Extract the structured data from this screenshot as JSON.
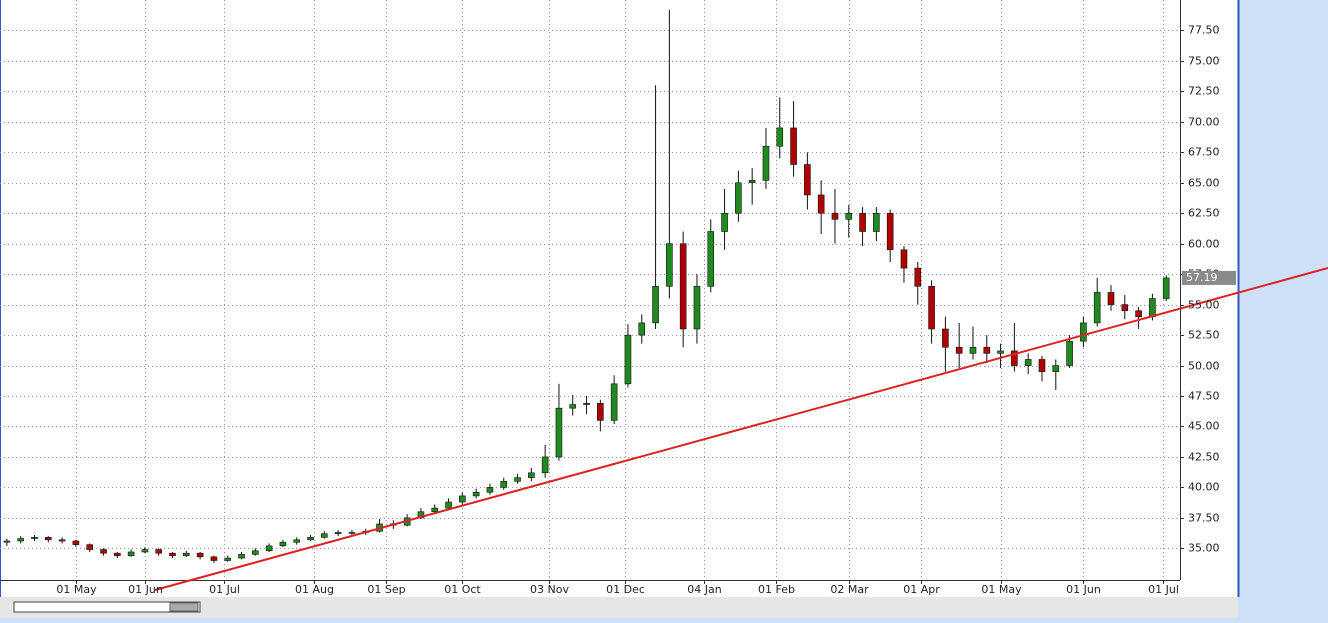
{
  "chart_data": {
    "type": "candlestick",
    "x": [
      0,
      4,
      8,
      12,
      16,
      20,
      24,
      28,
      32,
      36,
      40,
      44,
      48,
      52,
      56,
      60,
      64,
      68,
      72,
      76,
      80,
      84,
      88,
      92,
      96,
      100,
      104,
      108,
      112,
      116,
      120,
      124,
      128,
      132,
      136,
      140,
      144,
      148,
      152,
      156,
      160,
      164,
      168,
      172,
      176,
      180,
      184,
      188,
      192,
      196,
      200,
      204,
      208,
      212,
      216,
      220,
      224,
      228,
      232,
      236,
      240,
      244,
      248,
      252,
      256,
      260,
      264,
      268,
      272,
      276,
      280,
      284,
      288,
      292,
      296,
      300,
      304,
      308,
      312,
      316,
      320,
      324,
      328,
      332,
      336
    ],
    "open": [
      35.5,
      35.6,
      35.8,
      35.9,
      35.7,
      35.6,
      35.3,
      34.9,
      34.6,
      34.4,
      34.7,
      34.9,
      34.6,
      34.4,
      34.6,
      34.3,
      34.0,
      34.2,
      34.5,
      34.8,
      35.2,
      35.5,
      35.7,
      35.9,
      36.2,
      36.3,
      36.3,
      36.4,
      37.0,
      36.9,
      37.5,
      38.0,
      38.3,
      38.8,
      39.3,
      39.6,
      40.0,
      40.5,
      40.8,
      41.2,
      42.5,
      46.5,
      46.8,
      46.9,
      45.5,
      48.5,
      52.5,
      53.5,
      56.5,
      60.0,
      53.0,
      56.5,
      61.0,
      62.5,
      65.0,
      65.2,
      68.0,
      69.5,
      66.5,
      64.0,
      62.5,
      62.0,
      62.5,
      61.0,
      62.5,
      59.5,
      58.0,
      56.5,
      53.0,
      51.5,
      51.0,
      51.5,
      51.0,
      51.2,
      50.0,
      50.5,
      49.5,
      50.0,
      52.0,
      53.5,
      56.0,
      55.0,
      54.5,
      54.0,
      55.5
    ],
    "high": [
      35.8,
      36.0,
      36.1,
      36.0,
      35.9,
      35.7,
      35.4,
      35.0,
      34.7,
      34.9,
      35.1,
      35.0,
      34.7,
      34.8,
      34.7,
      34.4,
      34.4,
      34.7,
      35.0,
      35.4,
      35.7,
      35.9,
      36.1,
      36.4,
      36.5,
      36.5,
      36.6,
      37.4,
      37.3,
      37.8,
      38.3,
      38.6,
      39.1,
      39.6,
      39.9,
      40.3,
      40.8,
      41.1,
      41.6,
      43.5,
      48.5,
      47.6,
      47.5,
      47.2,
      49.2,
      53.4,
      54.2,
      73.0,
      79.2,
      61.0,
      57.5,
      62.0,
      64.5,
      66.0,
      66.2,
      69.5,
      72.0,
      71.7,
      67.5,
      65.2,
      64.5,
      63.2,
      63.0,
      63.0,
      62.8,
      59.8,
      58.5,
      57.0,
      54.0,
      53.5,
      53.2,
      52.5,
      51.8,
      53.5,
      51.0,
      50.8,
      50.5,
      52.5,
      54.0,
      57.2,
      56.6,
      55.8,
      54.8,
      55.9,
      57.4
    ],
    "low": [
      35.2,
      35.4,
      35.6,
      35.5,
      35.4,
      35.1,
      34.7,
      34.4,
      34.2,
      34.3,
      34.6,
      34.4,
      34.2,
      34.3,
      34.1,
      33.8,
      33.9,
      34.1,
      34.4,
      34.7,
      35.1,
      35.3,
      35.6,
      35.8,
      36.0,
      36.1,
      36.1,
      36.3,
      36.6,
      36.8,
      37.4,
      37.8,
      38.2,
      38.6,
      39.1,
      39.4,
      39.8,
      40.3,
      40.5,
      40.8,
      42.2,
      45.9,
      46.0,
      44.6,
      45.2,
      48.2,
      51.8,
      53.0,
      55.5,
      51.5,
      51.8,
      56.0,
      59.5,
      61.8,
      63.2,
      64.5,
      67.0,
      65.5,
      62.8,
      60.8,
      60.0,
      60.5,
      59.8,
      60.2,
      58.5,
      56.8,
      55.0,
      51.8,
      49.5,
      49.8,
      50.5,
      50.2,
      49.8,
      49.5,
      49.3,
      48.7,
      48.0,
      49.8,
      51.5,
      53.2,
      54.5,
      53.8,
      53.0,
      53.7,
      55.3
    ],
    "close": [
      35.6,
      35.8,
      35.9,
      35.7,
      35.6,
      35.3,
      34.9,
      34.6,
      34.4,
      34.7,
      34.9,
      34.6,
      34.4,
      34.6,
      34.3,
      34.0,
      34.2,
      34.5,
      34.8,
      35.2,
      35.5,
      35.7,
      35.9,
      36.2,
      36.3,
      36.3,
      36.4,
      37.0,
      36.9,
      37.5,
      38.0,
      38.3,
      38.8,
      39.3,
      39.6,
      40.0,
      40.5,
      40.8,
      41.2,
      42.5,
      46.5,
      46.8,
      46.9,
      45.5,
      48.5,
      52.5,
      53.5,
      56.5,
      60.0,
      53.0,
      56.5,
      61.0,
      62.5,
      65.0,
      65.2,
      68.0,
      69.5,
      66.5,
      64.0,
      62.5,
      62.0,
      62.5,
      61.0,
      62.5,
      59.5,
      58.0,
      56.5,
      53.0,
      51.5,
      51.0,
      51.5,
      51.0,
      51.2,
      50.0,
      50.5,
      49.5,
      50.0,
      52.0,
      53.5,
      56.0,
      55.0,
      54.5,
      54.0,
      55.5,
      57.19
    ],
    "up_color": "#1f8a1f",
    "down_color": "#b00000",
    "xlim": [
      -2,
      340
    ],
    "xticks": [
      {
        "value": 20,
        "label": "01 May"
      },
      {
        "value": 40,
        "label": "01 Jun"
      },
      {
        "value": 63,
        "label": "01 Jul"
      },
      {
        "value": 89,
        "label": "01 Aug"
      },
      {
        "value": 110,
        "label": "01 Sep"
      },
      {
        "value": 132,
        "label": "01 Oct"
      },
      {
        "value": 157,
        "label": "03 Nov"
      },
      {
        "value": 179,
        "label": "01 Dec"
      },
      {
        "value": 202,
        "label": "04 Jan"
      },
      {
        "value": 223,
        "label": "01 Feb"
      },
      {
        "value": 244,
        "label": "02 Mar"
      },
      {
        "value": 265,
        "label": "01 Apr"
      },
      {
        "value": 288,
        "label": "01 May"
      },
      {
        "value": 312,
        "label": "01 Jun"
      },
      {
        "value": 335,
        "label": "01 Jul"
      }
    ],
    "ylim": [
      32.4,
      80
    ],
    "yticks": [
      {
        "value": 35,
        "label": "35.00"
      },
      {
        "value": 37.5,
        "label": "37.50"
      },
      {
        "value": 40,
        "label": "40.00"
      },
      {
        "value": 42.5,
        "label": "42.50"
      },
      {
        "value": 45,
        "label": "45.00"
      },
      {
        "value": 47.5,
        "label": "47.50"
      },
      {
        "value": 50,
        "label": "50.00"
      },
      {
        "value": 52.5,
        "label": "52.50"
      },
      {
        "value": 55,
        "label": "55.00"
      },
      {
        "value": 57.5,
        "label": "57.50"
      },
      {
        "value": 60,
        "label": "60.00"
      },
      {
        "value": 62.5,
        "label": "62.50"
      },
      {
        "value": 65,
        "label": "65.00"
      },
      {
        "value": 67.5,
        "label": "67.50"
      },
      {
        "value": 70,
        "label": "70.00"
      },
      {
        "value": 72.5,
        "label": "72.50"
      },
      {
        "value": 75,
        "label": "75.00"
      },
      {
        "value": 77.5,
        "label": "77.50"
      }
    ],
    "grid": true
  }
}
